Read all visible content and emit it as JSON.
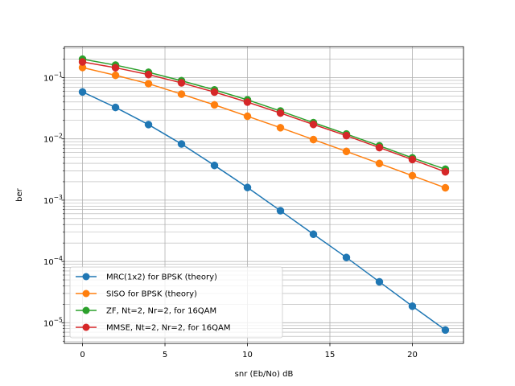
{
  "chart_data": {
    "type": "line",
    "title": "",
    "xlabel": "snr (Eb/No) dB",
    "ylabel": "ber",
    "xlim": [
      -1.1,
      23.1
    ],
    "ylim": [
      4.6e-06,
      0.32
    ],
    "yscale": "log",
    "grid": "both (major and minor)",
    "legend_position": "lower-left",
    "x": [
      0,
      2,
      4,
      6,
      8,
      10,
      12,
      14,
      16,
      18,
      20,
      22
    ],
    "x_ticks": [
      0,
      5,
      10,
      15,
      20
    ],
    "y_ticks": [
      {
        "value": 1e-05,
        "base": "10",
        "exp": "−5"
      },
      {
        "value": 0.0001,
        "base": "10",
        "exp": "−4"
      },
      {
        "value": 0.001,
        "base": "10",
        "exp": "−3"
      },
      {
        "value": 0.01,
        "base": "10",
        "exp": "−2"
      },
      {
        "value": 0.1,
        "base": "10",
        "exp": "−1"
      }
    ],
    "series": [
      {
        "name": "MRC(1x2) for BPSK (theory)",
        "color": "#1f77b4",
        "values": [
          0.0583,
          0.0326,
          0.0171,
          0.00825,
          0.00369,
          0.00161,
          0.000672,
          0.000278,
          0.000116,
          4.65e-05,
          1.86e-05,
          7.6e-06
        ]
      },
      {
        "name": "SISO for BPSK (theory)",
        "color": "#ff7f0e",
        "values": [
          0.146,
          0.109,
          0.0795,
          0.0537,
          0.0359,
          0.0234,
          0.0152,
          0.00974,
          0.00624,
          0.00397,
          0.00251,
          0.00159
        ]
      },
      {
        "name": "ZF, Nt=2, Nr=2, for 16QAM",
        "color": "#2ca02c",
        "values": [
          0.2,
          0.16,
          0.122,
          0.089,
          0.063,
          0.0434,
          0.0285,
          0.0184,
          0.012,
          0.0077,
          0.0049,
          0.0032
        ]
      },
      {
        "name": "MMSE, Nt=2, Nr=2, for 16QAM",
        "color": "#d62728",
        "values": [
          0.18,
          0.145,
          0.112,
          0.082,
          0.058,
          0.0398,
          0.0264,
          0.0172,
          0.0113,
          0.0072,
          0.0046,
          0.0029
        ]
      }
    ]
  }
}
